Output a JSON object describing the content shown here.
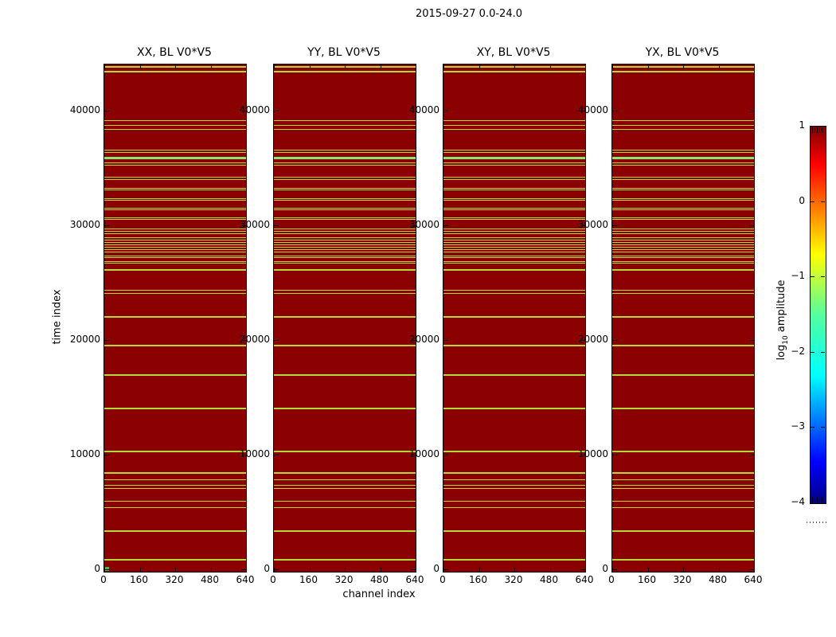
{
  "figure": {
    "suptitle": "2015-09-27 0.0-24.0",
    "xlabel": "channel index",
    "ylabel": "time index"
  },
  "colorbar": {
    "label_prefix": "log",
    "label_sub": "10",
    "label_suffix": " amplitude",
    "tick_labels": [
      "1",
      "0",
      "−1",
      "−2",
      "−3",
      "−4"
    ],
    "range": [
      -4,
      1
    ],
    "colormap": "jet",
    "gradient_bottom_to_top": [
      "#000083",
      "#0000ff",
      "#00ffff",
      "#54ff9e",
      "#ffff00",
      "#ff0000",
      "#800000"
    ],
    "gradient_stops_pct": [
      0,
      11,
      34,
      50,
      66,
      90,
      100
    ]
  },
  "chart_data": {
    "type": "heatmap",
    "title": "2015-09-27 0.0-24.0",
    "xlabel": "channel index",
    "ylabel": "time index",
    "colorbar_label": "log10 amplitude",
    "panels": [
      {
        "title": "XX, BL V0*V5"
      },
      {
        "title": "YY, BL V0*V5"
      },
      {
        "title": "XY, BL V0*V5"
      },
      {
        "title": "YX, BL V0*V5"
      }
    ],
    "x_axis": {
      "ticks": [
        0,
        160,
        320,
        480,
        640
      ],
      "range": [
        0,
        640
      ]
    },
    "y_axis": {
      "ticks": [
        0,
        10000,
        20000,
        30000,
        40000
      ],
      "range": [
        0,
        44030
      ]
    },
    "value_axis": {
      "ticks": [
        1,
        0,
        -1,
        -2,
        -3,
        -4
      ],
      "range": [
        -4,
        1
      ]
    },
    "colors": {
      "high_amplitude_bg": "#8b0000",
      "flag_stripe": "#b2d83a",
      "bright_stripe": "#8ce56e",
      "origin_marker": "#4db83e"
    },
    "flagged_time_stripes": [
      [
        43830,
        2,
        0
      ],
      [
        43400,
        2,
        0
      ],
      [
        39100,
        1,
        0
      ],
      [
        38740,
        1,
        0
      ],
      [
        38400,
        1,
        0
      ],
      [
        36560,
        1,
        0
      ],
      [
        36360,
        1,
        0
      ],
      [
        35900,
        3,
        1
      ],
      [
        35460,
        1,
        0
      ],
      [
        35270,
        1,
        0
      ],
      [
        34170,
        1,
        0
      ],
      [
        33990,
        1,
        0
      ],
      [
        33240,
        1,
        0
      ],
      [
        33060,
        1,
        0
      ],
      [
        32340,
        1,
        0
      ],
      [
        32160,
        1,
        0
      ],
      [
        31510,
        1,
        0
      ],
      [
        31330,
        1,
        0
      ],
      [
        30670,
        1,
        0
      ],
      [
        30490,
        1,
        0
      ],
      [
        29700,
        1,
        0
      ],
      [
        29480,
        1,
        0
      ],
      [
        29260,
        1,
        0
      ],
      [
        28940,
        1,
        0
      ],
      [
        28730,
        1,
        0
      ],
      [
        28520,
        1,
        0
      ],
      [
        28310,
        1,
        0
      ],
      [
        28100,
        1,
        0
      ],
      [
        27890,
        1,
        0
      ],
      [
        27680,
        1,
        0
      ],
      [
        27350,
        1,
        0
      ],
      [
        27170,
        1,
        0
      ],
      [
        26860,
        1,
        0
      ],
      [
        26680,
        1,
        0
      ],
      [
        26090,
        2,
        0
      ],
      [
        24370,
        1,
        0
      ],
      [
        24030,
        1,
        0
      ],
      [
        21980,
        2,
        0
      ],
      [
        19510,
        2,
        0
      ],
      [
        16940,
        2,
        0
      ],
      [
        14030,
        2,
        0
      ],
      [
        10280,
        2,
        0
      ],
      [
        8400,
        2,
        0
      ],
      [
        7790,
        1,
        0
      ],
      [
        7360,
        1,
        0
      ],
      [
        7080,
        1,
        0
      ],
      [
        5970,
        1,
        0
      ],
      [
        5350,
        1,
        0
      ],
      [
        3330,
        2,
        0
      ],
      [
        830,
        2,
        0
      ]
    ],
    "origin_marker_panel": 0
  }
}
